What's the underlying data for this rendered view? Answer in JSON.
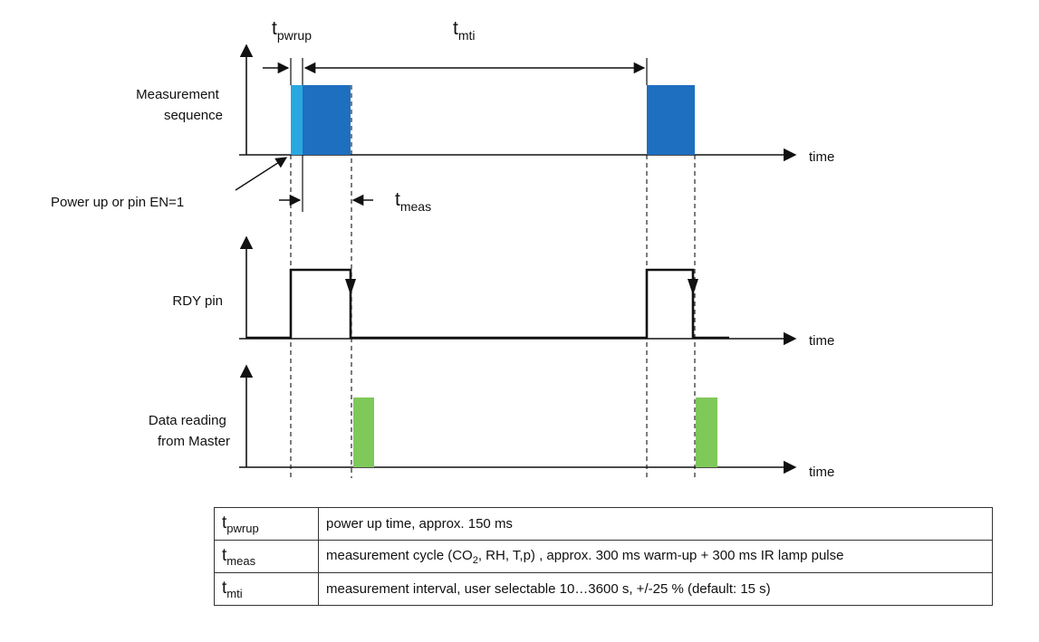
{
  "diagram": {
    "labels": {
      "t_pwrup": {
        "base": "t",
        "sub": "pwrup"
      },
      "t_mti": {
        "base": "t",
        "sub": "mti"
      },
      "t_meas": {
        "base": "t",
        "sub": "meas"
      },
      "power_up": "Power up or pin EN=1"
    },
    "rows": [
      {
        "lines": [
          "Measurement",
          "sequence"
        ],
        "axis": "time"
      },
      {
        "lines": [
          "RDY pin"
        ],
        "axis": "time"
      },
      {
        "lines": [
          "Data reading",
          "from Master"
        ],
        "axis": "time"
      }
    ],
    "colors": {
      "pwrup_block": "#29a8e0",
      "meas_block": "#1e6fc0",
      "data_block": "#7fc85a",
      "line": "#111111"
    }
  },
  "table": {
    "rows": [
      {
        "sym_base": "t",
        "sym_sub": "pwrup",
        "desc": "power  up time, approx. 150 ms"
      },
      {
        "sym_base": "t",
        "sym_sub": "meas",
        "desc_parts": [
          "measurement  cycle (CO",
          "2",
          ", RH, T,p) , approx. 300 ms warm-up + 300 ms IR lamp pulse"
        ]
      },
      {
        "sym_base": "t",
        "sym_sub": "mti",
        "desc": "measurement  interval,  user selectable 10…3600  s, +/-25 % (default:  15 s)"
      }
    ]
  }
}
